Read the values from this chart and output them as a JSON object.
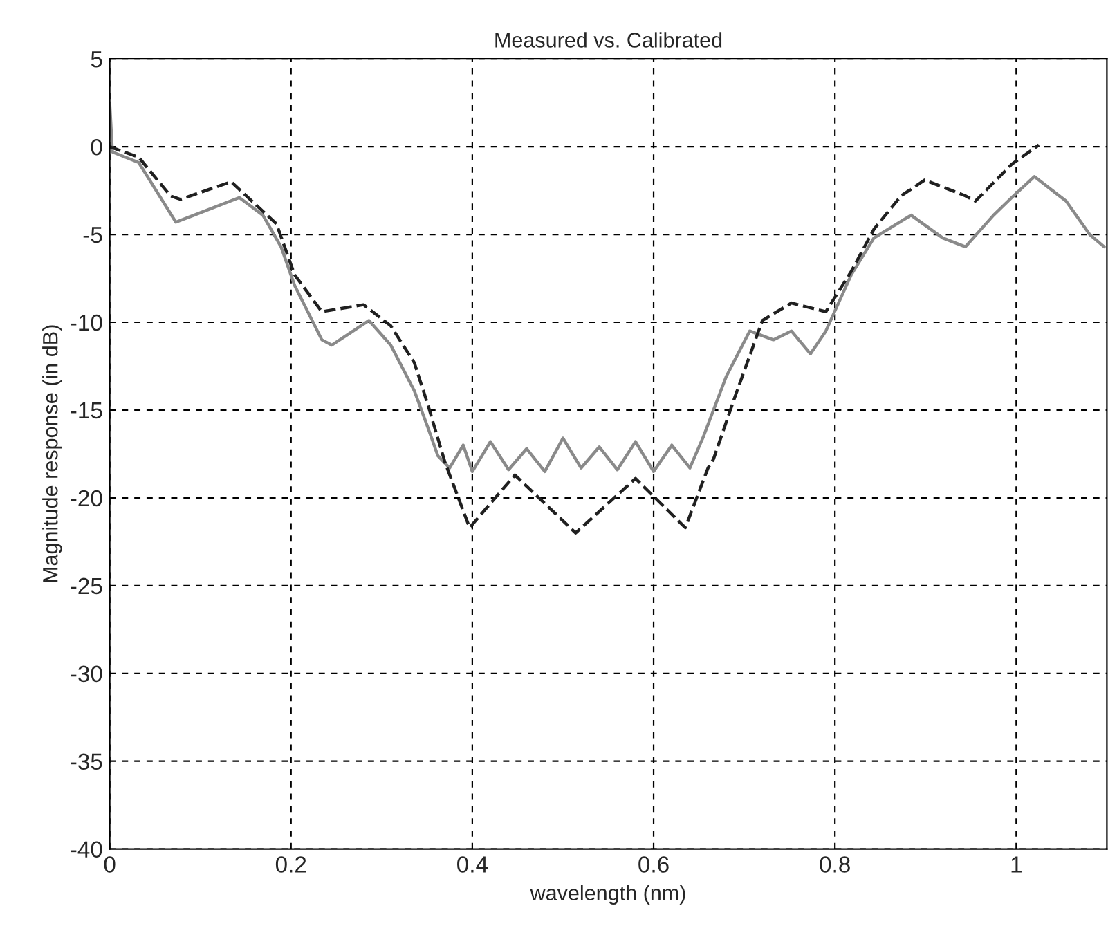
{
  "chart_data": {
    "type": "line",
    "title": "Measured vs. Calibrated",
    "xlabel": "wavelength (nm)",
    "ylabel": "Magnitude response (in dB)",
    "xlim": [
      0,
      1.1
    ],
    "ylim": [
      -40,
      5
    ],
    "xticks": [
      0,
      0.2,
      0.4,
      0.6,
      0.8,
      1
    ],
    "yticks": [
      5,
      0,
      -5,
      -10,
      -15,
      -20,
      -25,
      -30,
      -35,
      -40
    ],
    "grid": true,
    "legend": false,
    "series": [
      {
        "color": "#8a8a8a",
        "line_style": "solid",
        "x": [
          0,
          0.003,
          0.032,
          0.073,
          0.093,
          0.143,
          0.169,
          0.189,
          0.204,
          0.234,
          0.245,
          0.286,
          0.31,
          0.336,
          0.351,
          0.362,
          0.375,
          0.39,
          0.4,
          0.42,
          0.44,
          0.46,
          0.48,
          0.5,
          0.52,
          0.54,
          0.56,
          0.58,
          0.6,
          0.62,
          0.64,
          0.655,
          0.68,
          0.706,
          0.732,
          0.752,
          0.773,
          0.79,
          0.818,
          0.843,
          0.884,
          0.919,
          0.944,
          0.975,
          0.995,
          1.02,
          1.055,
          1.081,
          1.097
        ],
        "values": [
          2.5,
          -0.3,
          -0.9,
          -4.3,
          -3.9,
          -2.9,
          -3.9,
          -5.7,
          -7.9,
          -11.0,
          -11.3,
          -9.9,
          -11.3,
          -13.9,
          -16.0,
          -17.6,
          -18.3,
          -17.0,
          -18.5,
          -16.8,
          -18.4,
          -17.2,
          -18.5,
          -16.6,
          -18.3,
          -17.1,
          -18.4,
          -16.8,
          -18.5,
          -17.0,
          -18.3,
          -16.5,
          -13.1,
          -10.5,
          -11.0,
          -10.5,
          -11.8,
          -10.5,
          -7.3,
          -5.2,
          -3.9,
          -5.2,
          -5.7,
          -3.9,
          -2.9,
          -1.7,
          -3.1,
          -5.0,
          -5.7
        ]
      },
      {
        "color": "#202020",
        "line_style": "dashed",
        "x": [
          0,
          0.032,
          0.067,
          0.078,
          0.134,
          0.184,
          0.204,
          0.234,
          0.28,
          0.31,
          0.336,
          0.351,
          0.37,
          0.397,
          0.447,
          0.514,
          0.58,
          0.635,
          0.66,
          0.666,
          0.69,
          0.72,
          0.752,
          0.79,
          0.818,
          0.843,
          0.873,
          0.899,
          0.944,
          0.955,
          0.995,
          1.025
        ],
        "values": [
          0,
          -0.6,
          -2.8,
          -3.0,
          -2.0,
          -4.4,
          -7.3,
          -9.4,
          -9.0,
          -10.2,
          -12.3,
          -14.7,
          -18.0,
          -21.7,
          -18.7,
          -22.0,
          -18.9,
          -21.7,
          -18.3,
          -17.8,
          -14.2,
          -9.9,
          -8.9,
          -9.4,
          -7.1,
          -4.7,
          -2.8,
          -1.9,
          -2.8,
          -3.1,
          -1.0,
          0.1
        ]
      }
    ]
  }
}
